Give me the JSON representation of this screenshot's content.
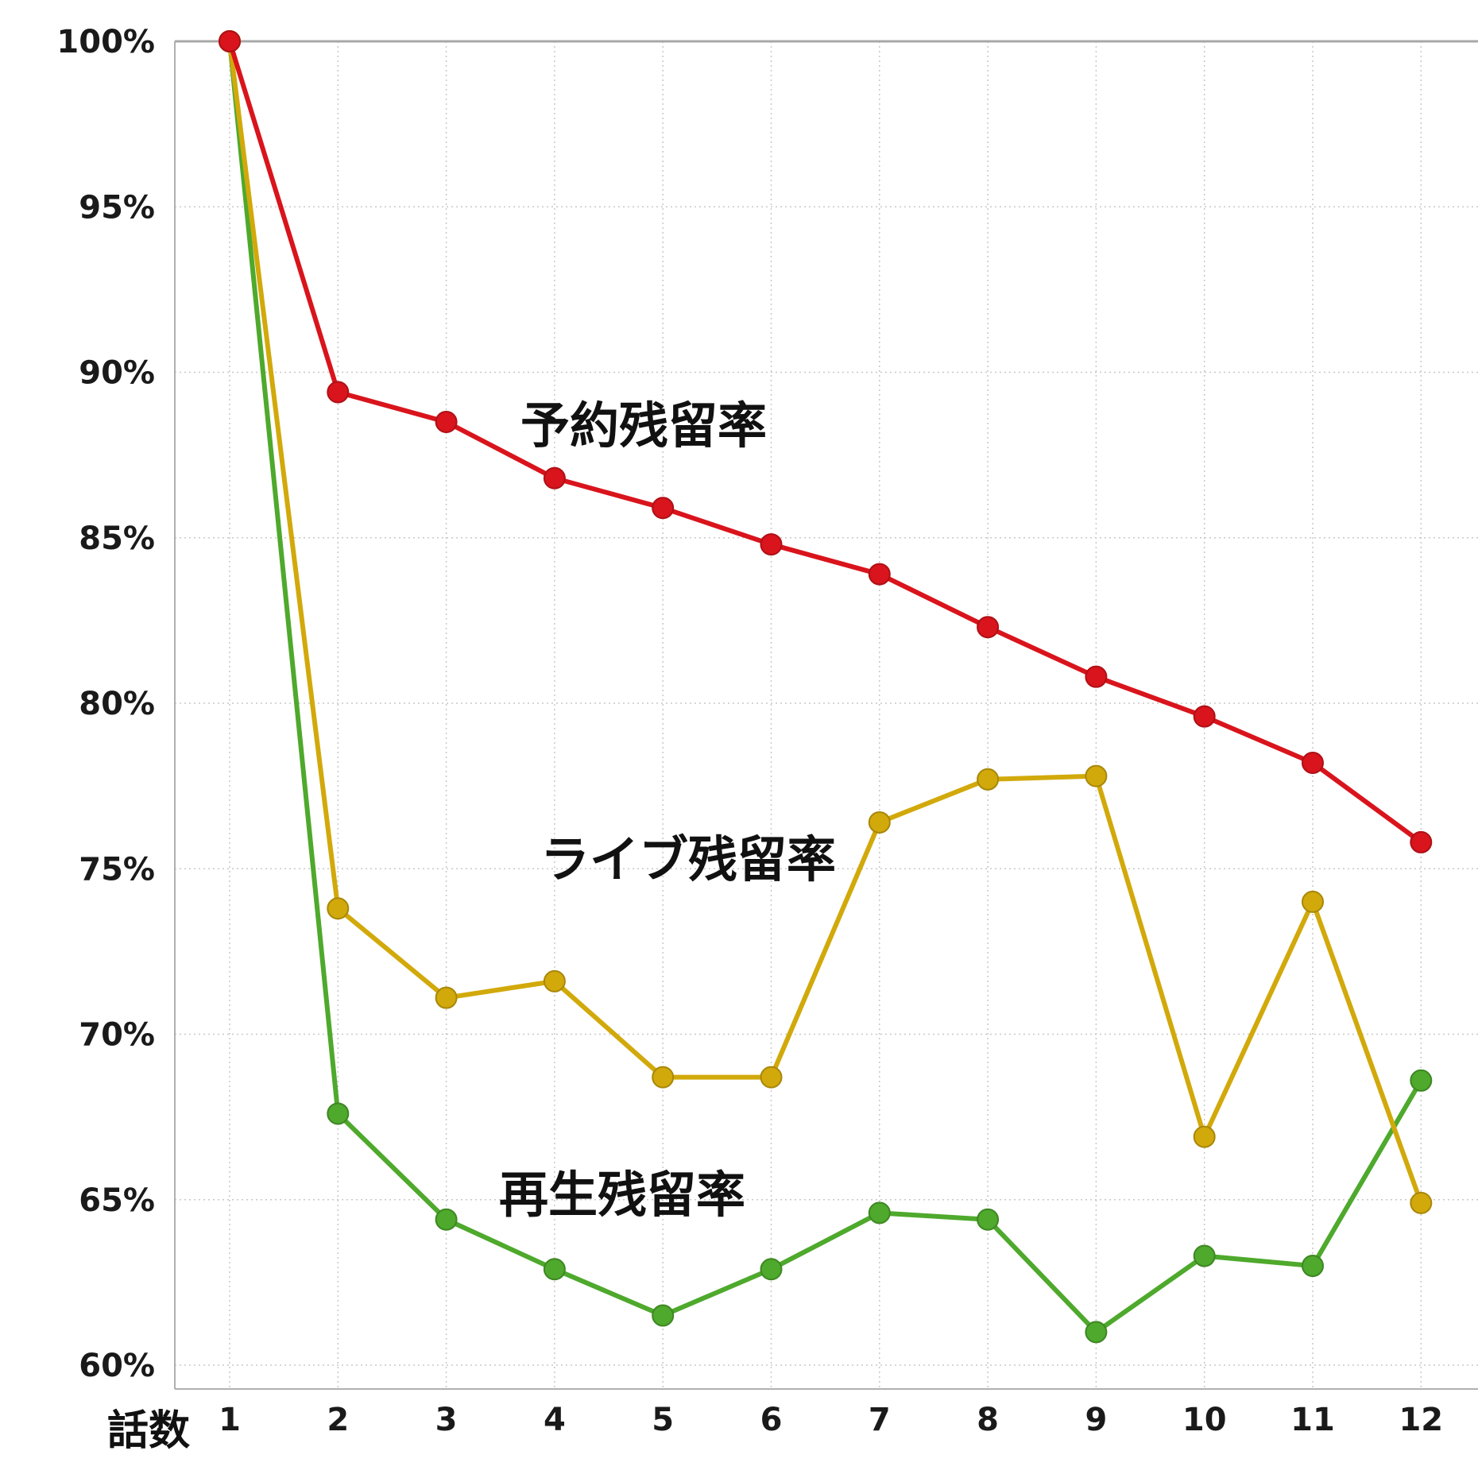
{
  "chart_data": {
    "type": "line",
    "xlabel": "話数",
    "ylabel": "",
    "x": [
      1,
      2,
      3,
      4,
      5,
      6,
      7,
      8,
      9,
      10,
      11,
      12
    ],
    "y_ticks": [
      "60%",
      "65%",
      "70%",
      "75%",
      "80%",
      "85%",
      "90%",
      "95%",
      "100%"
    ],
    "y_tick_values": [
      60,
      65,
      70,
      75,
      80,
      85,
      90,
      95,
      100
    ],
    "ylim": [
      60,
      100
    ],
    "grid": true,
    "legend": "inline labels",
    "series": [
      {
        "name": "予約残留率",
        "color": "#d9141c",
        "values": [
          100,
          89.4,
          88.5,
          86.8,
          85.9,
          84.8,
          83.9,
          82.3,
          80.8,
          79.6,
          78.2,
          75.8
        ]
      },
      {
        "name": "ライブ残留率",
        "color": "#d2a90b",
        "values": [
          100,
          73.8,
          71.1,
          71.6,
          68.7,
          68.7,
          76.4,
          77.7,
          77.8,
          66.9,
          74.0,
          64.9
        ]
      },
      {
        "name": "再生残留率",
        "color": "#4ea92c",
        "values": [
          100,
          67.6,
          64.4,
          62.9,
          61.5,
          62.9,
          64.6,
          64.4,
          61.0,
          63.3,
          63.0,
          68.6
        ]
      }
    ]
  }
}
